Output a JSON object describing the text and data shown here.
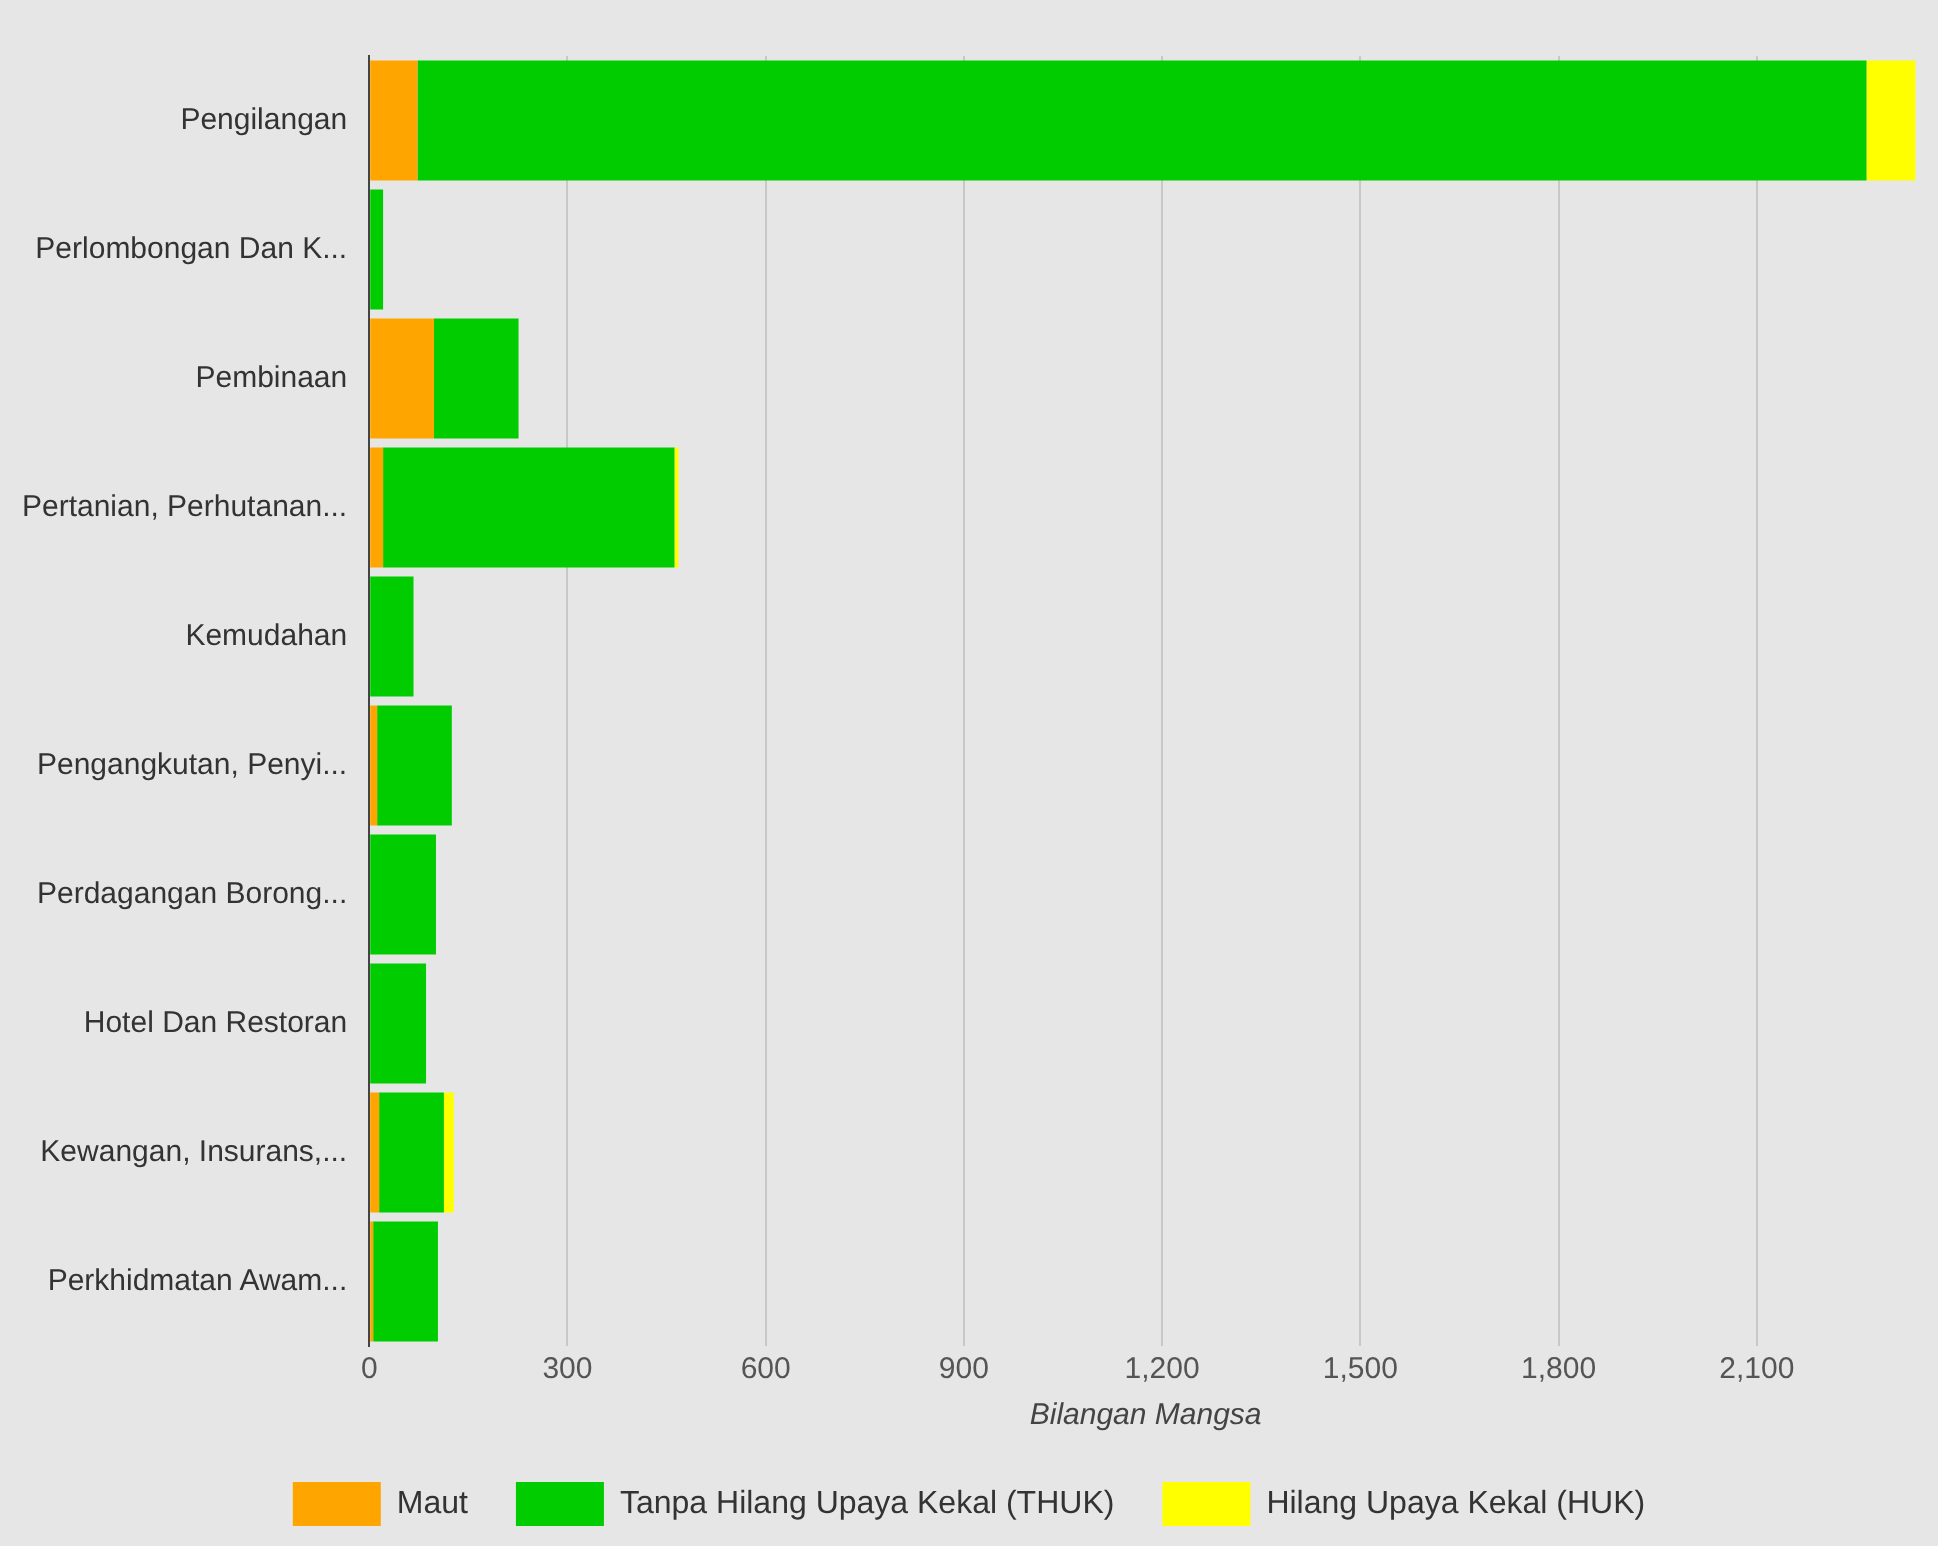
{
  "chart_data": {
    "type": "bar",
    "orientation": "horizontal",
    "stacked": true,
    "xlabel": "Bilangan Mangsa",
    "categories": [
      "Pengilangan",
      "Perlombongan Dan K...",
      "Pembinaan",
      "Pertanian, Perhutanan...",
      "Kemudahan",
      "Pengangkutan, Penyi...",
      "Perdagangan Borong...",
      "Hotel Dan Restoran",
      "Kewangan, Insurans,...",
      "Perkhidmatan Awam..."
    ],
    "series": [
      {
        "name": "Maut",
        "color": "#ffa500",
        "values": [
          73,
          0,
          98,
          21,
          0,
          12,
          0,
          0,
          15,
          6
        ]
      },
      {
        "name": "Tanpa Hilang Upaya Kekal (THUK)",
        "color": "#00cc00",
        "values": [
          2193,
          21,
          128,
          441,
          67,
          113,
          101,
          86,
          98,
          98
        ]
      },
      {
        "name": "Hilang Upaya Kekal (HUK)",
        "color": "#ffff00",
        "values": [
          74,
          0,
          0,
          6,
          0,
          0,
          0,
          0,
          15,
          0
        ]
      }
    ],
    "xlim": [
      0,
      2350
    ],
    "xticks": [
      0,
      {
        "value": 300,
        "label": "300"
      },
      {
        "value": 600,
        "label": "600"
      },
      {
        "value": 900,
        "label": "900"
      },
      {
        "value": 1200,
        "label": "1,200"
      },
      {
        "value": 1500,
        "label": "1,500"
      },
      {
        "value": 1800,
        "label": "1,800"
      },
      {
        "value": 2100,
        "label": "2,100"
      }
    ],
    "grid": "x",
    "legend": "bottom"
  }
}
